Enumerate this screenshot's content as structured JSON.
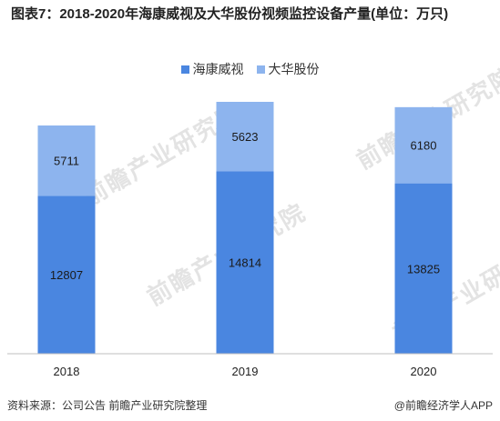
{
  "title": "图表7：2018-2020年海康威视及大华股份视频监控设备产量(单位：万只)",
  "watermark": "前瞻产业研究院",
  "source": "资料来源：公司公告 前瞻产业研究院整理",
  "brand": "@前瞻经济学人APP",
  "chart_data": {
    "type": "bar",
    "stacked": true,
    "categories": [
      "2018",
      "2019",
      "2020"
    ],
    "series": [
      {
        "name": "海康威视",
        "color": "#4a86e0",
        "values": [
          12807,
          14814,
          13825
        ]
      },
      {
        "name": "大华股份",
        "color": "#8db4ee",
        "values": [
          5711,
          5623,
          6180
        ]
      }
    ],
    "ylim": [
      0,
      20437
    ],
    "grid": false,
    "legend_position": "top-center"
  }
}
